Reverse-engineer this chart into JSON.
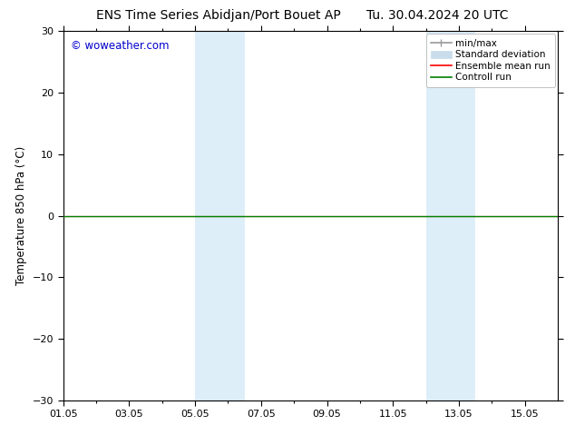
{
  "title_left": "ENS Time Series Abidjan/Port Bouet AP",
  "title_right": "Tu. 30.04.2024 20 UTC",
  "ylabel": "Temperature 850 hPa (°C)",
  "ylim": [
    -30,
    30
  ],
  "yticks": [
    -30,
    -20,
    -10,
    0,
    10,
    20,
    30
  ],
  "xlabel_ticks": [
    "01.05",
    "03.05",
    "05.05",
    "07.05",
    "09.05",
    "11.05",
    "13.05",
    "15.05"
  ],
  "x_tick_positions": [
    0,
    2,
    4,
    6,
    8,
    10,
    12,
    14
  ],
  "x_min": 0,
  "x_max": 15,
  "background_color": "#ffffff",
  "plot_bg_color": "#ffffff",
  "shaded_regions": [
    {
      "x_start": 4.0,
      "x_end": 5.5
    },
    {
      "x_start": 11.0,
      "x_end": 12.5
    }
  ],
  "shaded_color": "#ddeef8",
  "control_run_color": "#008000",
  "ensemble_mean_color": "#ff0000",
  "minmax_color": "#999999",
  "watermark_text": "© woweather.com",
  "watermark_color": "#0000cc",
  "legend_labels": [
    "min/max",
    "Standard deviation",
    "Ensemble mean run",
    "Controll run"
  ],
  "legend_colors": [
    "#999999",
    "#c8dcea",
    "#ff0000",
    "#008000"
  ],
  "title_fontsize": 10,
  "axis_label_fontsize": 8.5,
  "tick_fontsize": 8,
  "legend_fontsize": 7.5
}
